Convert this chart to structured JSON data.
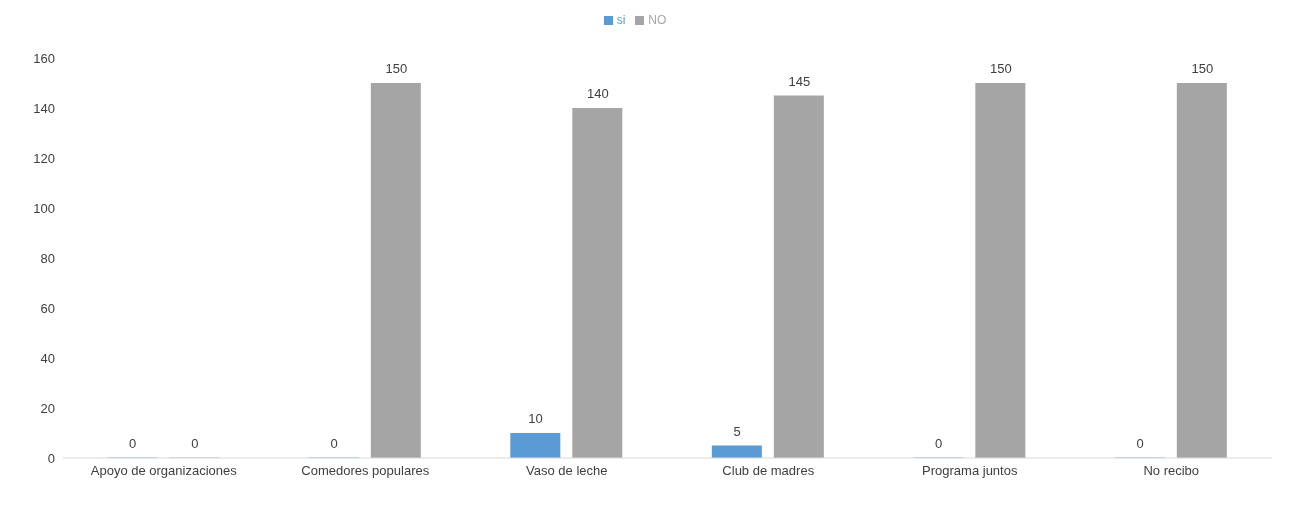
{
  "chart_data": {
    "type": "bar",
    "categories": [
      "Apoyo de organizaciones",
      "Comedores populares",
      "Vaso de leche",
      "Club de madres",
      "Programa juntos",
      "No recibo"
    ],
    "series": [
      {
        "name": "si",
        "color": "#5b9bd5",
        "values": [
          0,
          0,
          10,
          5,
          0,
          0
        ]
      },
      {
        "name": "NO",
        "color": "#a5a5a5",
        "values": [
          0,
          150,
          140,
          145,
          150,
          150
        ]
      }
    ],
    "ylim": [
      0,
      160
    ],
    "yticks": [
      0,
      20,
      40,
      60,
      80,
      100,
      120,
      140,
      160
    ],
    "grid": false,
    "legend": "top",
    "data_labels": true
  }
}
